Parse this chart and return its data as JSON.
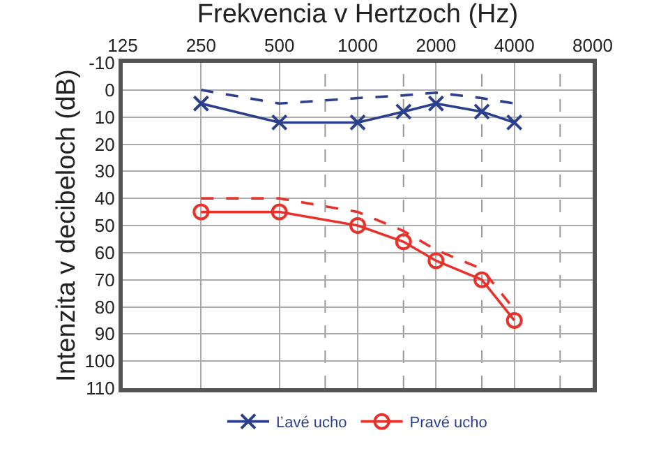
{
  "chart_data": {
    "type": "line",
    "xlabel": "Frekvencia v Hertzoch (Hz)",
    "ylabel": "Intenzita v decibeloch (dB)",
    "x": [
      250,
      500,
      1000,
      1500,
      2000,
      3000,
      4000
    ],
    "series": [
      {
        "name": "Ľavé ucho",
        "color": "#2b3f8c",
        "marker": "cross",
        "line_style": "solid",
        "values": [
          5,
          12,
          12,
          8,
          5,
          8,
          12
        ]
      },
      {
        "color": "#2b3f8c",
        "marker": "none",
        "line_style": "dashed",
        "values": [
          0,
          5,
          3,
          2,
          1,
          3,
          5
        ]
      },
      {
        "name": "Pravé ucho",
        "color": "#e8312a",
        "marker": "circle",
        "line_style": "solid",
        "values": [
          45,
          45,
          50,
          56,
          63,
          70,
          85
        ]
      },
      {
        "color": "#e8312a",
        "marker": "none",
        "line_style": "dashed",
        "values": [
          40,
          40,
          45,
          52,
          59,
          66,
          81
        ]
      }
    ],
    "log": "x",
    "xlim": [
      125,
      8000
    ],
    "xticks": [
      125,
      250,
      500,
      1000,
      2000,
      4000,
      8000
    ],
    "ylim": [
      110,
      -10
    ],
    "yticks": [
      -10,
      0,
      10,
      20,
      30,
      40,
      50,
      60,
      70,
      80,
      90,
      100,
      110
    ],
    "ref_lines": [
      {
        "axis": "x",
        "value": 750,
        "color": "#999999",
        "line_style": "dashed"
      },
      {
        "axis": "x",
        "value": 1500,
        "color": "#999999",
        "line_style": "dashed"
      },
      {
        "axis": "x",
        "value": 3000,
        "color": "#999999",
        "line_style": "dashed"
      },
      {
        "axis": "x",
        "value": 6000,
        "color": "#999999",
        "line_style": "dashed"
      }
    ],
    "grid": true,
    "legend": "bottom"
  }
}
